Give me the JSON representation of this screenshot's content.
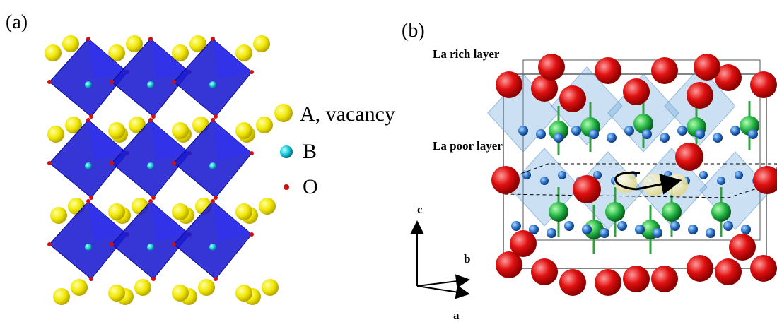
{
  "panel_a": {
    "label": "(a)",
    "legend": [
      "A, vacancy",
      "B",
      "O"
    ]
  },
  "panel_b": {
    "label": "(b)",
    "annotations": [
      "La rich layer",
      "La poor layer"
    ],
    "axes": [
      "c",
      "b",
      "a"
    ]
  }
}
